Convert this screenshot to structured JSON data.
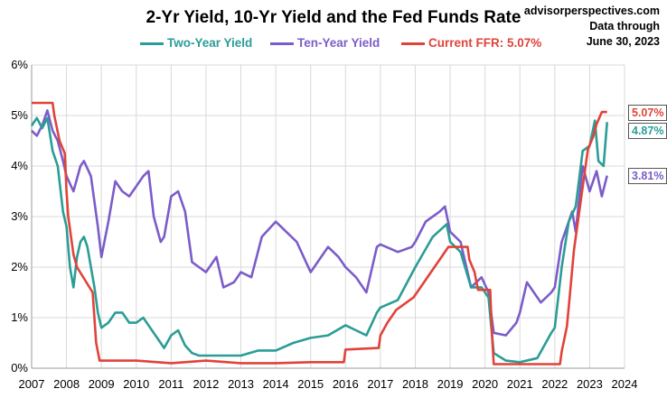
{
  "chart_data": {
    "type": "line",
    "title": "2-Yr Yield, 10-Yr Yield and the Fed Funds Rate",
    "source": "advisorperspectives.com",
    "data_through": [
      "Data through",
      "June 30, 2023"
    ],
    "ylim": [
      0,
      6
    ],
    "xlim": [
      2007,
      2024
    ],
    "y_ticks": [
      "0%",
      "1%",
      "2%",
      "3%",
      "4%",
      "5%",
      "6%"
    ],
    "x_ticks": [
      "2007",
      "2008",
      "2009",
      "2010",
      "2011",
      "2012",
      "2013",
      "2014",
      "2015",
      "2016",
      "2017",
      "2018",
      "2019",
      "2020",
      "2021",
      "2022",
      "2023",
      "2024"
    ],
    "grid": true,
    "legend_position": "top",
    "series": [
      {
        "name": "Two-Year Yield",
        "color": "#2a9d96",
        "end_label": "4.87%",
        "points": [
          [
            2007.0,
            4.8
          ],
          [
            2007.15,
            4.95
          ],
          [
            2007.3,
            4.75
          ],
          [
            2007.45,
            4.95
          ],
          [
            2007.6,
            4.3
          ],
          [
            2007.75,
            4.0
          ],
          [
            2007.9,
            3.1
          ],
          [
            2008.0,
            2.8
          ],
          [
            2008.1,
            2.0
          ],
          [
            2008.2,
            1.6
          ],
          [
            2008.3,
            2.2
          ],
          [
            2008.4,
            2.5
          ],
          [
            2008.5,
            2.6
          ],
          [
            2008.6,
            2.4
          ],
          [
            2008.7,
            2.0
          ],
          [
            2008.8,
            1.6
          ],
          [
            2008.9,
            1.1
          ],
          [
            2009.0,
            0.8
          ],
          [
            2009.2,
            0.9
          ],
          [
            2009.4,
            1.1
          ],
          [
            2009.6,
            1.1
          ],
          [
            2009.8,
            0.9
          ],
          [
            2010.0,
            0.9
          ],
          [
            2010.2,
            1.0
          ],
          [
            2010.4,
            0.8
          ],
          [
            2010.6,
            0.6
          ],
          [
            2010.8,
            0.4
          ],
          [
            2011.0,
            0.65
          ],
          [
            2011.2,
            0.75
          ],
          [
            2011.4,
            0.45
          ],
          [
            2011.6,
            0.3
          ],
          [
            2011.8,
            0.25
          ],
          [
            2012.0,
            0.25
          ],
          [
            2012.5,
            0.25
          ],
          [
            2013.0,
            0.25
          ],
          [
            2013.5,
            0.35
          ],
          [
            2014.0,
            0.35
          ],
          [
            2014.5,
            0.5
          ],
          [
            2015.0,
            0.6
          ],
          [
            2015.5,
            0.65
          ],
          [
            2016.0,
            0.85
          ],
          [
            2016.3,
            0.75
          ],
          [
            2016.6,
            0.65
          ],
          [
            2016.9,
            1.1
          ],
          [
            2017.0,
            1.2
          ],
          [
            2017.5,
            1.35
          ],
          [
            2018.0,
            2.0
          ],
          [
            2018.5,
            2.6
          ],
          [
            2018.9,
            2.85
          ],
          [
            2019.0,
            2.5
          ],
          [
            2019.3,
            2.3
          ],
          [
            2019.6,
            1.6
          ],
          [
            2019.9,
            1.6
          ],
          [
            2020.1,
            1.4
          ],
          [
            2020.25,
            0.3
          ],
          [
            2020.6,
            0.15
          ],
          [
            2021.0,
            0.12
          ],
          [
            2021.5,
            0.2
          ],
          [
            2021.9,
            0.7
          ],
          [
            2022.0,
            0.8
          ],
          [
            2022.2,
            2.0
          ],
          [
            2022.4,
            2.9
          ],
          [
            2022.6,
            3.2
          ],
          [
            2022.8,
            4.3
          ],
          [
            2023.0,
            4.4
          ],
          [
            2023.15,
            4.9
          ],
          [
            2023.25,
            4.1
          ],
          [
            2023.4,
            4.0
          ],
          [
            2023.5,
            4.87
          ]
        ]
      },
      {
        "name": "Ten-Year Yield",
        "color": "#7c5cc9",
        "end_label": "3.81%",
        "points": [
          [
            2007.0,
            4.7
          ],
          [
            2007.15,
            4.6
          ],
          [
            2007.3,
            4.8
          ],
          [
            2007.45,
            5.1
          ],
          [
            2007.6,
            4.7
          ],
          [
            2007.75,
            4.5
          ],
          [
            2007.9,
            4.1
          ],
          [
            2008.0,
            3.8
          ],
          [
            2008.2,
            3.5
          ],
          [
            2008.4,
            4.0
          ],
          [
            2008.5,
            4.1
          ],
          [
            2008.7,
            3.8
          ],
          [
            2008.9,
            2.8
          ],
          [
            2009.0,
            2.2
          ],
          [
            2009.2,
            2.9
          ],
          [
            2009.4,
            3.7
          ],
          [
            2009.6,
            3.5
          ],
          [
            2009.8,
            3.4
          ],
          [
            2010.0,
            3.6
          ],
          [
            2010.2,
            3.8
          ],
          [
            2010.35,
            3.9
          ],
          [
            2010.5,
            3.0
          ],
          [
            2010.7,
            2.5
          ],
          [
            2010.8,
            2.6
          ],
          [
            2011.0,
            3.4
          ],
          [
            2011.2,
            3.5
          ],
          [
            2011.4,
            3.1
          ],
          [
            2011.6,
            2.1
          ],
          [
            2011.8,
            2.0
          ],
          [
            2012.0,
            1.9
          ],
          [
            2012.3,
            2.2
          ],
          [
            2012.5,
            1.6
          ],
          [
            2012.8,
            1.7
          ],
          [
            2013.0,
            1.9
          ],
          [
            2013.3,
            1.8
          ],
          [
            2013.6,
            2.6
          ],
          [
            2014.0,
            2.9
          ],
          [
            2014.3,
            2.7
          ],
          [
            2014.6,
            2.5
          ],
          [
            2015.0,
            1.9
          ],
          [
            2015.3,
            2.2
          ],
          [
            2015.5,
            2.4
          ],
          [
            2015.8,
            2.2
          ],
          [
            2016.0,
            2.0
          ],
          [
            2016.3,
            1.8
          ],
          [
            2016.6,
            1.5
          ],
          [
            2016.9,
            2.4
          ],
          [
            2017.0,
            2.45
          ],
          [
            2017.5,
            2.3
          ],
          [
            2017.9,
            2.4
          ],
          [
            2018.0,
            2.5
          ],
          [
            2018.3,
            2.9
          ],
          [
            2018.7,
            3.1
          ],
          [
            2018.85,
            3.2
          ],
          [
            2019.0,
            2.7
          ],
          [
            2019.3,
            2.5
          ],
          [
            2019.6,
            1.6
          ],
          [
            2019.9,
            1.8
          ],
          [
            2020.1,
            1.5
          ],
          [
            2020.25,
            0.7
          ],
          [
            2020.6,
            0.65
          ],
          [
            2020.9,
            0.9
          ],
          [
            2021.0,
            1.1
          ],
          [
            2021.2,
            1.7
          ],
          [
            2021.4,
            1.5
          ],
          [
            2021.6,
            1.3
          ],
          [
            2021.9,
            1.5
          ],
          [
            2022.0,
            1.6
          ],
          [
            2022.2,
            2.5
          ],
          [
            2022.4,
            2.9
          ],
          [
            2022.5,
            3.1
          ],
          [
            2022.6,
            2.7
          ],
          [
            2022.8,
            4.0
          ],
          [
            2023.0,
            3.5
          ],
          [
            2023.2,
            3.9
          ],
          [
            2023.35,
            3.4
          ],
          [
            2023.5,
            3.81
          ]
        ]
      },
      {
        "name": "Current FFR: 5.07%",
        "color": "#e0433a",
        "end_label": "5.07%",
        "points": [
          [
            2007.0,
            5.25
          ],
          [
            2007.6,
            5.25
          ],
          [
            2007.65,
            5.0
          ],
          [
            2007.8,
            4.5
          ],
          [
            2007.95,
            4.25
          ],
          [
            2008.0,
            3.5
          ],
          [
            2008.05,
            3.0
          ],
          [
            2008.2,
            2.25
          ],
          [
            2008.3,
            2.0
          ],
          [
            2008.75,
            1.5
          ],
          [
            2008.85,
            0.5
          ],
          [
            2008.95,
            0.15
          ],
          [
            2009.5,
            0.15
          ],
          [
            2010.0,
            0.15
          ],
          [
            2011.0,
            0.1
          ],
          [
            2012.0,
            0.15
          ],
          [
            2013.0,
            0.1
          ],
          [
            2014.0,
            0.1
          ],
          [
            2015.0,
            0.12
          ],
          [
            2015.95,
            0.12
          ],
          [
            2016.0,
            0.37
          ],
          [
            2016.95,
            0.4
          ],
          [
            2017.0,
            0.65
          ],
          [
            2017.2,
            0.9
          ],
          [
            2017.45,
            1.15
          ],
          [
            2017.95,
            1.4
          ],
          [
            2018.2,
            1.65
          ],
          [
            2018.45,
            1.9
          ],
          [
            2018.7,
            2.15
          ],
          [
            2018.95,
            2.4
          ],
          [
            2019.5,
            2.4
          ],
          [
            2019.55,
            2.15
          ],
          [
            2019.7,
            1.9
          ],
          [
            2019.8,
            1.55
          ],
          [
            2020.15,
            1.55
          ],
          [
            2020.2,
            0.65
          ],
          [
            2020.25,
            0.08
          ],
          [
            2021.0,
            0.08
          ],
          [
            2022.15,
            0.08
          ],
          [
            2022.2,
            0.33
          ],
          [
            2022.35,
            0.83
          ],
          [
            2022.45,
            1.58
          ],
          [
            2022.55,
            2.33
          ],
          [
            2022.7,
            3.08
          ],
          [
            2022.85,
            3.83
          ],
          [
            2022.95,
            4.33
          ],
          [
            2023.1,
            4.58
          ],
          [
            2023.2,
            4.83
          ],
          [
            2023.35,
            5.07
          ],
          [
            2023.5,
            5.07
          ]
        ]
      }
    ]
  }
}
